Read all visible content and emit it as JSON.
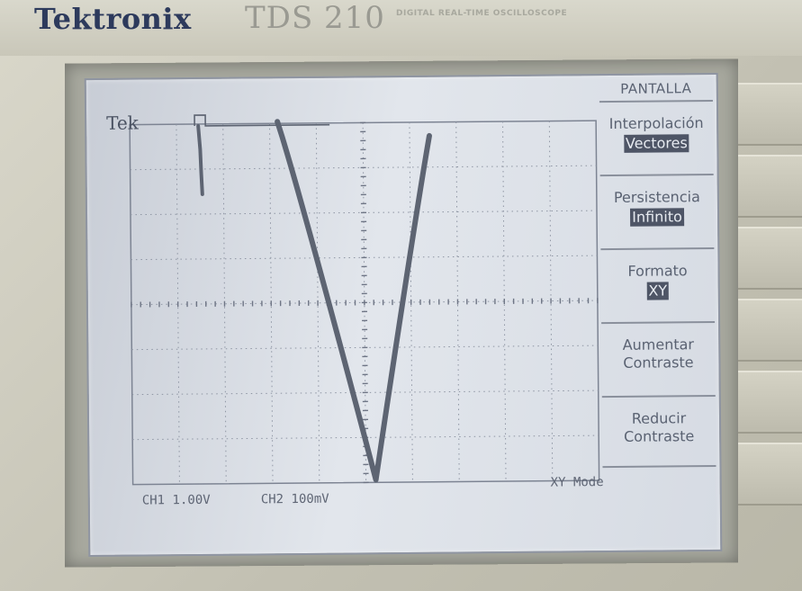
{
  "bezel": {
    "brand": "Tektronix",
    "model": "TDS 210",
    "model_desc": "DIGITAL REAL-TIME OSCILLOSCOPE"
  },
  "screen": {
    "logo": "Tek",
    "status": {
      "ch1": "CH1  1.00V",
      "ch2": "CH2  100mV",
      "mode": "XY Mode"
    },
    "menu": {
      "title": "PANTALLA",
      "items": [
        {
          "label": "Interpolación",
          "value": "Vectores"
        },
        {
          "label": "Persistencia",
          "value": "Infinito"
        },
        {
          "label": "Formato",
          "value": "XY"
        },
        {
          "label": "Aumentar\nContraste",
          "value": ""
        },
        {
          "label": "Reducir\nContraste",
          "value": ""
        }
      ]
    }
  },
  "colors": {
    "trace": "#5d6472",
    "grid": "#7d8493",
    "lcd_bg": "#dde1e8"
  },
  "icons": {
    "trigger_marker": "trigger-position-icon"
  }
}
